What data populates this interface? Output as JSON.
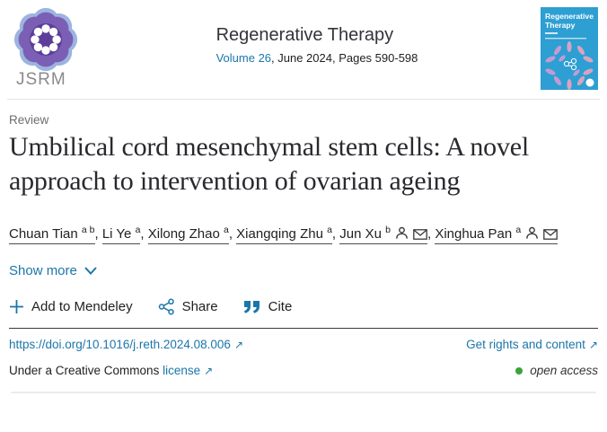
{
  "header": {
    "logo_text": "JSRM",
    "journal_title": "Regenerative Therapy",
    "volume_link": "Volume 26",
    "issue_suffix": ", June 2024, Pages 590-598",
    "cover_title_line1": "Regenerative",
    "cover_title_line2": "Therapy"
  },
  "article": {
    "type_label": "Review",
    "title": "Umbilical cord mesenchymal stem cells: A novel approach to intervention of ovarian ageing",
    "authors": [
      {
        "name": "Chuan Tian",
        "sup": "a b",
        "has_icons": false
      },
      {
        "name": "Li Ye",
        "sup": "a",
        "has_icons": false
      },
      {
        "name": "Xilong Zhao",
        "sup": "a",
        "has_icons": false
      },
      {
        "name": "Xiangqing Zhu",
        "sup": "a",
        "has_icons": false
      },
      {
        "name": "Jun Xu",
        "sup": "b",
        "has_icons": true
      },
      {
        "name": "Xinghua Pan",
        "sup": "a",
        "has_icons": true
      }
    ],
    "show_more_label": "Show more"
  },
  "actions": {
    "add_to_mendeley": "Add to Mendeley",
    "share": "Share",
    "cite": "Cite"
  },
  "footer": {
    "doi_link": "https://doi.org/10.1016/j.reth.2024.08.006",
    "rights_link": "Get rights and content",
    "license_prefix": "Under a Creative Commons",
    "license_link": "license",
    "open_access_label": "open access"
  },
  "icons": {
    "plus": "plus-icon",
    "share": "share-nodes-icon",
    "cite": "quote-icon",
    "chevron": "chevron-down-icon",
    "external": "↗",
    "person": "person-icon",
    "envelope": "envelope-icon"
  },
  "colors": {
    "link-blue": "#1b76a9",
    "open-access-green": "#3aa33a",
    "logo-purple": "#5c3e99",
    "cover-blue": "#2d9fd3",
    "cover-pink": "#d9a3c0"
  }
}
